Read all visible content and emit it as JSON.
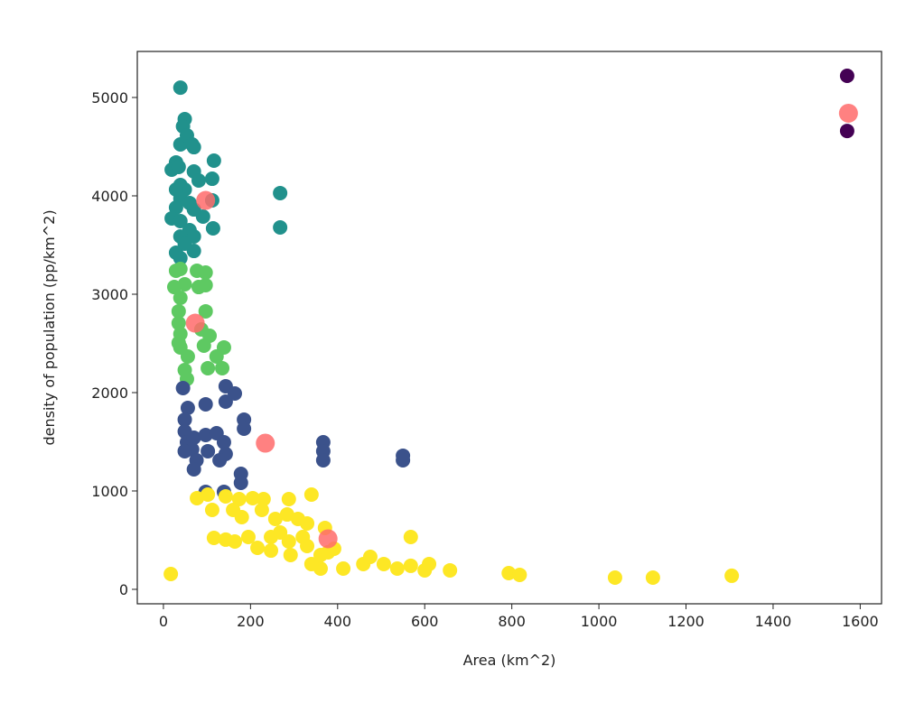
{
  "chart_data": {
    "type": "scatter",
    "title": "",
    "xlabel": "Area (km^2)",
    "ylabel": "density of population (pp/km^2)",
    "xlim": [
      -60,
      1649
    ],
    "ylim": [
      -147,
      5468
    ],
    "xticks": [
      0,
      200,
      400,
      600,
      800,
      1000,
      1200,
      1400,
      1600
    ],
    "yticks": [
      0,
      1000,
      2000,
      3000,
      4000,
      5000
    ],
    "grid": false,
    "colors": {
      "cluster0": "#440154",
      "cluster1": "#3b528b",
      "cluster2": "#21918c",
      "cluster3": "#5ec962",
      "cluster4": "#fde725",
      "centroid": "#ff6b6b"
    },
    "series": [
      {
        "name": "cluster0",
        "points": [
          [
            1570,
            5220
          ],
          [
            1570,
            4660
          ]
        ]
      },
      {
        "name": "cluster2",
        "points": [
          [
            39,
            5100
          ],
          [
            49,
            4780
          ],
          [
            45,
            4706
          ],
          [
            39,
            4523
          ],
          [
            54,
            4615
          ],
          [
            66,
            4523
          ],
          [
            70,
            4495
          ],
          [
            29,
            4340
          ],
          [
            19,
            4266
          ],
          [
            35,
            4294
          ],
          [
            116,
            4358
          ],
          [
            70,
            4248
          ],
          [
            81,
            4156
          ],
          [
            112,
            4174
          ],
          [
            39,
            4110
          ],
          [
            49,
            4064
          ],
          [
            39,
            3972
          ],
          [
            29,
            3881
          ],
          [
            70,
            3862
          ],
          [
            112,
            3954
          ],
          [
            19,
            3771
          ],
          [
            39,
            3743
          ],
          [
            60,
            3651
          ],
          [
            114,
            3670
          ],
          [
            70,
            3587
          ],
          [
            39,
            3587
          ],
          [
            70,
            3440
          ],
          [
            29,
            3422
          ],
          [
            39,
            3367
          ],
          [
            268,
            4028
          ],
          [
            268,
            3679
          ],
          [
            49,
            3514
          ],
          [
            91,
            3789
          ],
          [
            29,
            4064
          ],
          [
            60,
            3927
          ]
        ]
      },
      {
        "name": "cluster3",
        "points": [
          [
            39,
            3257
          ],
          [
            29,
            3239
          ],
          [
            77,
            3239
          ],
          [
            97,
            3220
          ],
          [
            25,
            3073
          ],
          [
            49,
            3101
          ],
          [
            81,
            3073
          ],
          [
            97,
            3092
          ],
          [
            39,
            2963
          ],
          [
            35,
            2826
          ],
          [
            35,
            2706
          ],
          [
            39,
            2596
          ],
          [
            35,
            2505
          ],
          [
            87,
            2642
          ],
          [
            106,
            2578
          ],
          [
            93,
            2477
          ],
          [
            139,
            2459
          ],
          [
            122,
            2367
          ],
          [
            56,
            2367
          ],
          [
            49,
            2229
          ],
          [
            54,
            2138
          ],
          [
            102,
            2248
          ],
          [
            135,
            2248
          ],
          [
            39,
            2459
          ],
          [
            97,
            2826
          ]
        ]
      },
      {
        "name": "cluster1",
        "points": [
          [
            45,
            2046
          ],
          [
            143,
            2064
          ],
          [
            164,
            1991
          ],
          [
            143,
            1908
          ],
          [
            97,
            1881
          ],
          [
            56,
            1844
          ],
          [
            185,
            1725
          ],
          [
            185,
            1633
          ],
          [
            49,
            1725
          ],
          [
            49,
            1605
          ],
          [
            54,
            1495
          ],
          [
            70,
            1541
          ],
          [
            97,
            1569
          ],
          [
            122,
            1587
          ],
          [
            66,
            1422
          ],
          [
            76,
            1312
          ],
          [
            70,
            1220
          ],
          [
            139,
            1495
          ],
          [
            143,
            1376
          ],
          [
            129,
            1312
          ],
          [
            178,
            1174
          ],
          [
            178,
            1083
          ],
          [
            139,
            991
          ],
          [
            97,
            991
          ],
          [
            367,
            1495
          ],
          [
            367,
            1404
          ],
          [
            367,
            1312
          ],
          [
            550,
            1358
          ],
          [
            550,
            1312
          ],
          [
            49,
            1404
          ],
          [
            102,
            1404
          ]
        ]
      },
      {
        "name": "cluster4",
        "points": [
          [
            17,
            156
          ],
          [
            77,
            927
          ],
          [
            102,
            963
          ],
          [
            112,
            807
          ],
          [
            143,
            945
          ],
          [
            174,
            917
          ],
          [
            205,
            927
          ],
          [
            230,
            917
          ],
          [
            226,
            807
          ],
          [
            160,
            807
          ],
          [
            180,
            734
          ],
          [
            116,
            523
          ],
          [
            143,
            505
          ],
          [
            164,
            486
          ],
          [
            195,
            532
          ],
          [
            216,
            422
          ],
          [
            247,
            532
          ],
          [
            257,
            716
          ],
          [
            288,
            917
          ],
          [
            340,
            963
          ],
          [
            284,
            761
          ],
          [
            309,
            716
          ],
          [
            330,
            670
          ],
          [
            268,
            578
          ],
          [
            288,
            486
          ],
          [
            320,
            532
          ],
          [
            330,
            440
          ],
          [
            292,
            349
          ],
          [
            361,
            349
          ],
          [
            371,
            624
          ],
          [
            378,
            376
          ],
          [
            392,
            413
          ],
          [
            361,
            211
          ],
          [
            413,
            211
          ],
          [
            459,
            257
          ],
          [
            475,
            330
          ],
          [
            506,
            257
          ],
          [
            537,
            211
          ],
          [
            568,
            239
          ],
          [
            600,
            193
          ],
          [
            610,
            257
          ],
          [
            568,
            532
          ],
          [
            658,
            193
          ],
          [
            793,
            165
          ],
          [
            818,
            147
          ],
          [
            1037,
            119
          ],
          [
            1124,
            119
          ],
          [
            1305,
            138
          ],
          [
            340,
            257
          ],
          [
            247,
            394
          ]
        ]
      },
      {
        "name": "centroids",
        "points": [
          [
            97,
            3954
          ],
          [
            73,
            2706
          ],
          [
            234,
            1486
          ],
          [
            378,
            514
          ],
          [
            1573,
            4840
          ]
        ]
      }
    ]
  }
}
